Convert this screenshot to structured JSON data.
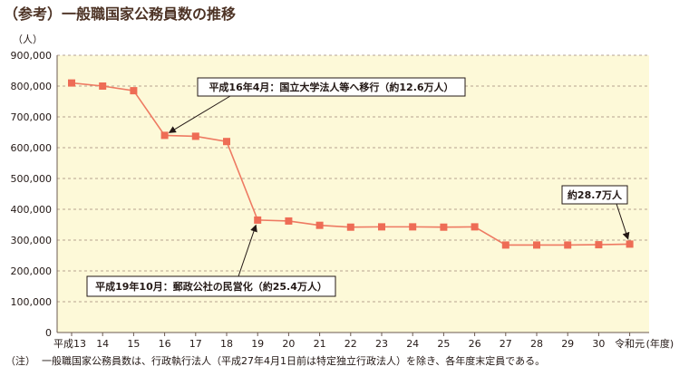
{
  "title": "（参考）一般職国家公務員数の推移",
  "note_label": "（注）",
  "note_text": "一般職国家公務員数は、行政執行法人（平成27年4月1日前は特定独立行政法人）を除き、各年度末定員である。",
  "colors": {
    "plot_bg": "#fdf9d8",
    "line": "#ee7a62",
    "marker": "#ee6c55",
    "grid": "#a08878",
    "title": "#4d3325"
  },
  "chart_data": {
    "type": "line",
    "ylabel": "（人）",
    "xlabel_suffix": "(年度)",
    "ylim": [
      0,
      900000
    ],
    "yticks": [
      0,
      100000,
      200000,
      300000,
      400000,
      500000,
      600000,
      700000,
      800000,
      900000
    ],
    "ytick_labels": [
      "0",
      "100,000",
      "200,000",
      "300,000",
      "400,000",
      "500,000",
      "600,000",
      "700,000",
      "800,000",
      "900,000"
    ],
    "categories": [
      "平成13",
      "14",
      "15",
      "16",
      "17",
      "18",
      "19",
      "20",
      "21",
      "22",
      "23",
      "24",
      "25",
      "26",
      "27",
      "28",
      "29",
      "30",
      "令和元"
    ],
    "values": [
      810000,
      800000,
      785000,
      640000,
      637000,
      620000,
      365000,
      362000,
      348000,
      342000,
      343000,
      343000,
      342000,
      343000,
      284000,
      284000,
      284000,
      285000,
      287000
    ],
    "grid": true,
    "annotations": [
      {
        "text": "平成16年4月：国立大学法人等へ移行（約12.6万人）",
        "target_index": 3
      },
      {
        "text": "平成19年10月：郵政公社の民営化（約25.4万人）",
        "target_index": 6
      },
      {
        "text": "約28.7万人",
        "target_index": 18
      }
    ]
  }
}
